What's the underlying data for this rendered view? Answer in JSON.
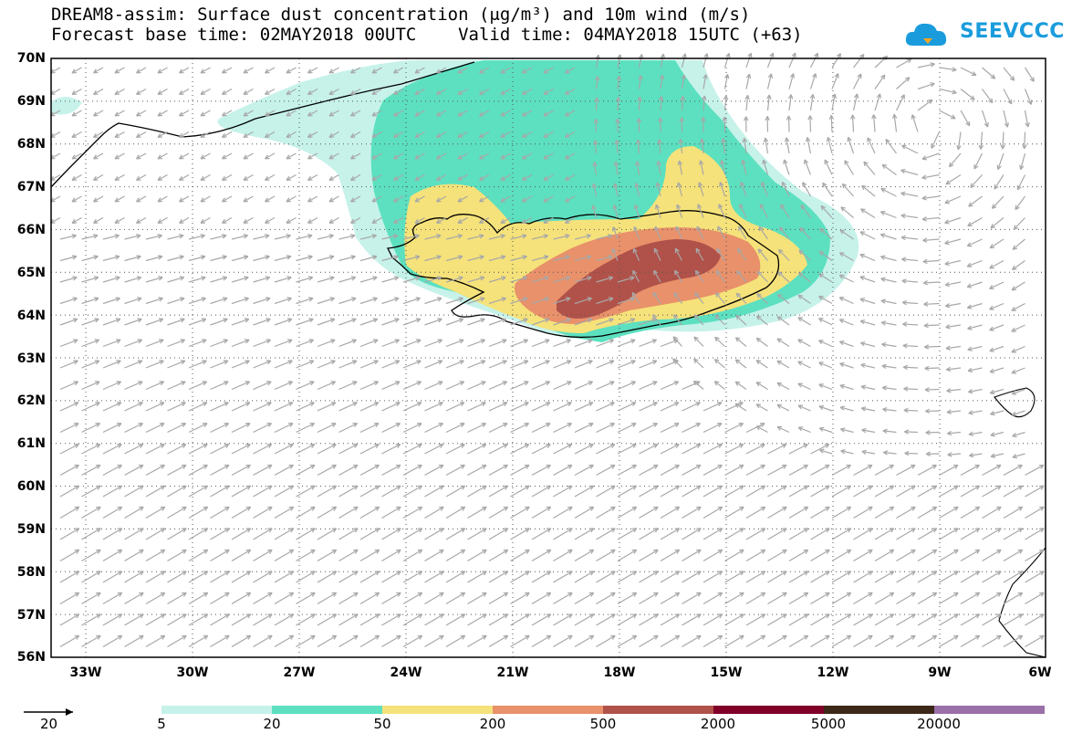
{
  "title_line1": "DREAM8-assim: Surface dust concentration (μg/m³) and 10m wind (m/s)",
  "title_line2": "Forecast base time: 02MAY2018 00UTC    Valid time: 04MAY2018 15UTC (+63)",
  "logo_text": "SEEVCCC",
  "lat_labels": [
    "70N",
    "69N",
    "68N",
    "67N",
    "66N",
    "65N",
    "64N",
    "63N",
    "62N",
    "61N",
    "60N",
    "59N",
    "58N",
    "57N",
    "56N"
  ],
  "lon_labels": [
    "33W",
    "30W",
    "27W",
    "24W",
    "21W",
    "18W",
    "15W",
    "12W",
    "9W",
    "6W"
  ],
  "legend": {
    "colors": [
      "#c6f2ea",
      "#5ce0c0",
      "#f5e27a",
      "#e8916a",
      "#b0524a",
      "#800028",
      "#3c2818",
      "#9a70a8"
    ],
    "labels": [
      "5",
      "20",
      "50",
      "200",
      "500",
      "2000",
      "5000",
      "20000"
    ]
  },
  "wind_reference": "20",
  "colors": {
    "coast": "#000000",
    "arrow": "#a8a8a8",
    "grid": "#555555"
  }
}
